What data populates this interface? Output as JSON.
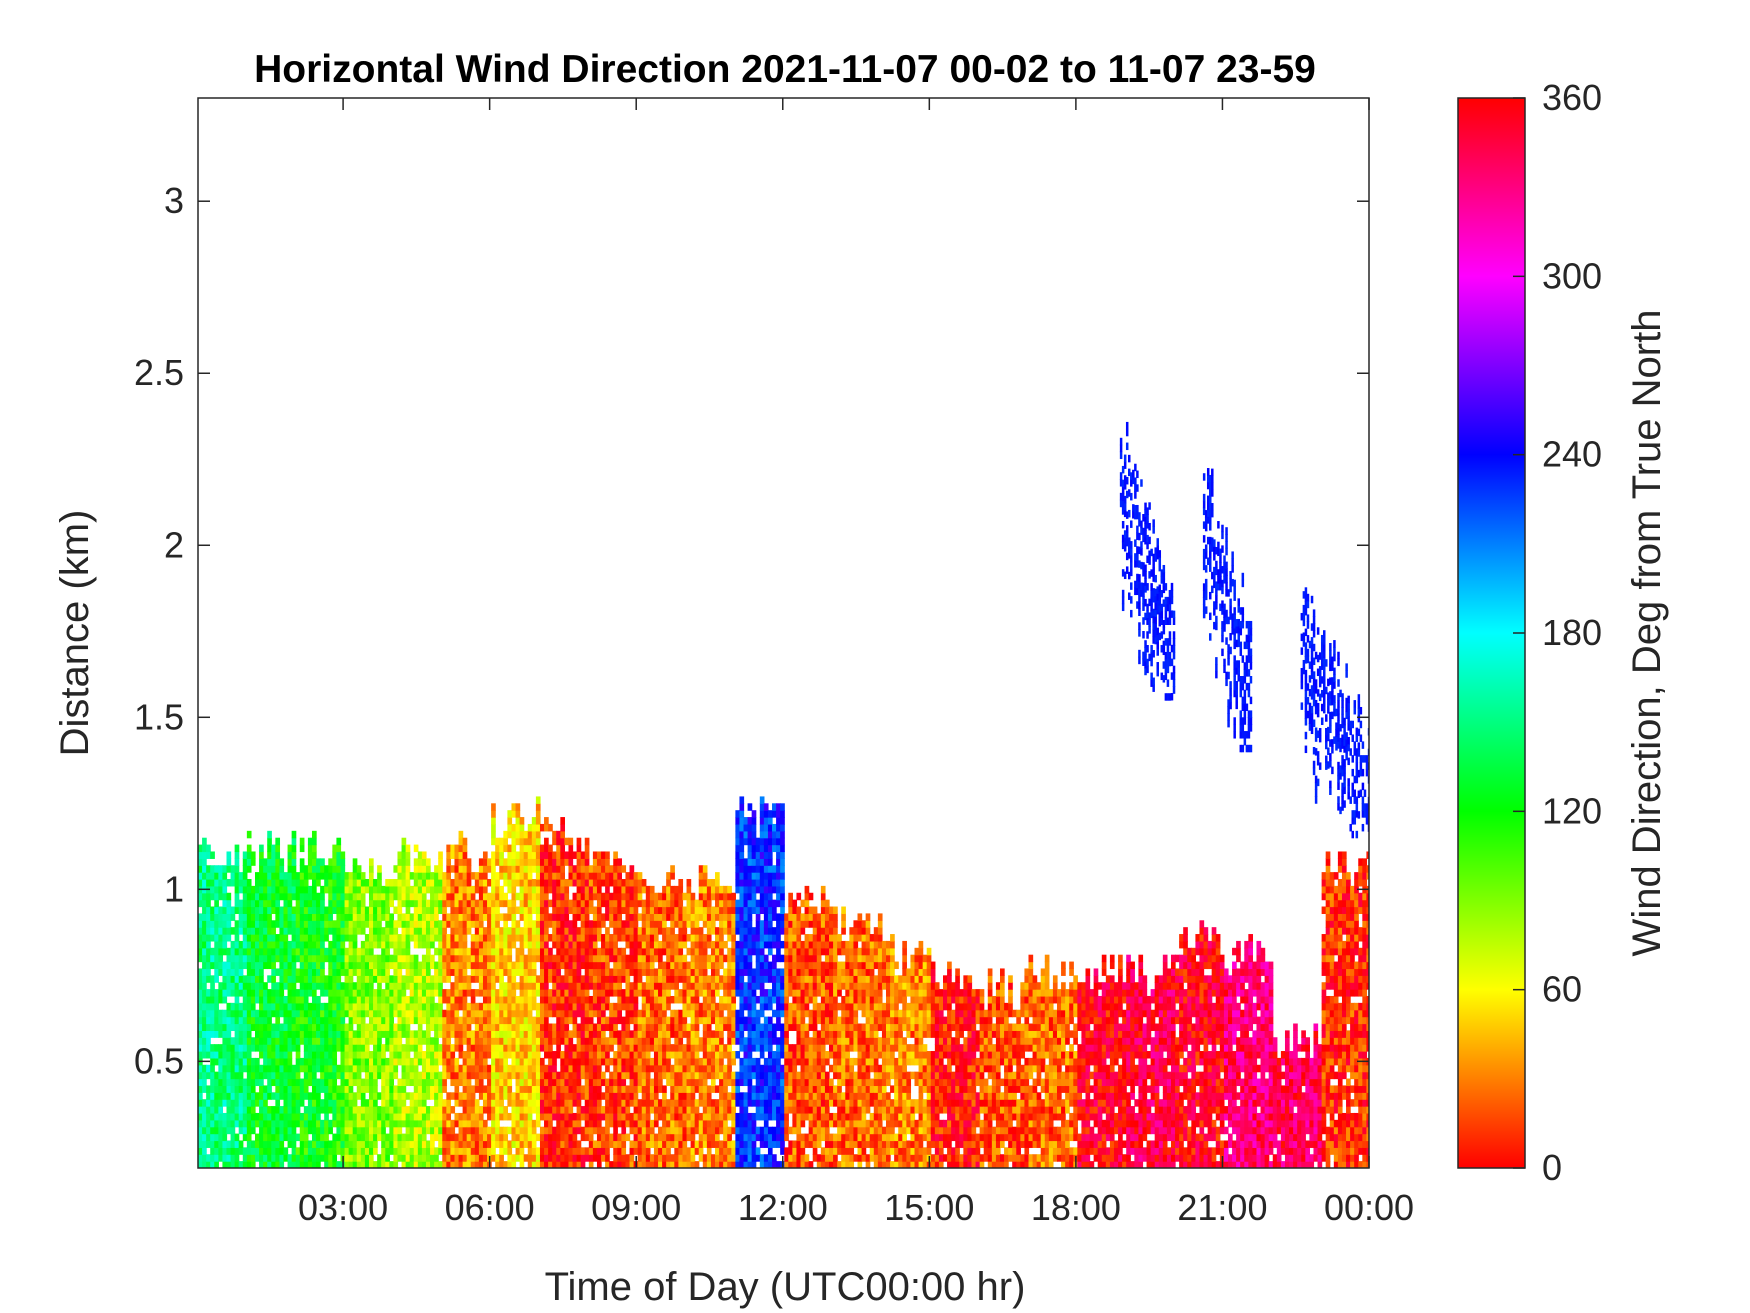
{
  "chart_data": {
    "type": "heatmap",
    "title": "Horizontal Wind Direction 2021-11-07 00-02 to 11-07 23-59",
    "xlabel": "Time of Day (UTC00:00 hr)",
    "ylabel": "Distance (km)",
    "colorbar_label": "Wind Direction, Deg from True North",
    "xlim_hours": [
      0.03,
      24
    ],
    "ylim": [
      0.19,
      3.3
    ],
    "x_ticks": [
      3,
      6,
      9,
      12,
      15,
      18,
      21,
      24
    ],
    "x_tick_labels": [
      "03:00",
      "06:00",
      "09:00",
      "12:00",
      "15:00",
      "18:00",
      "21:00",
      "00:00"
    ],
    "y_ticks": [
      0.5,
      1,
      1.5,
      2,
      2.5,
      3
    ],
    "y_tick_labels": [
      "0.5",
      "1",
      "1.5",
      "2",
      "2.5",
      "3"
    ],
    "colorbar_range": [
      0,
      360
    ],
    "colorbar_ticks": [
      0,
      60,
      120,
      180,
      240,
      300,
      360
    ],
    "colorbar_tick_labels": [
      "0",
      "60",
      "120",
      "180",
      "240",
      "300",
      "360"
    ],
    "colormap": "hsv",
    "grid": false,
    "hourly_low_level": {
      "hour_start": [
        0,
        1,
        2,
        3,
        4,
        5,
        6,
        7,
        8,
        9,
        10,
        11,
        12,
        13,
        14,
        15,
        16,
        17,
        18,
        19,
        20,
        21,
        22,
        23
      ],
      "top_km": [
        1.1,
        1.1,
        1.1,
        1.05,
        1.1,
        1.1,
        1.2,
        1.15,
        1.05,
        1.0,
        1.0,
        1.2,
        0.95,
        0.9,
        0.8,
        0.75,
        0.7,
        0.75,
        0.75,
        0.75,
        0.85,
        0.8,
        0.55,
        1.05
      ],
      "direction_deg": [
        150,
        130,
        120,
        90,
        80,
        30,
        50,
        10,
        15,
        25,
        30,
        230,
        20,
        25,
        30,
        5,
        20,
        25,
        355,
        345,
        355,
        335,
        340,
        10
      ]
    },
    "upper_level_features": [
      {
        "hours": [
          18.9,
          20.0
        ],
        "bottom_km": 1.55,
        "top_km": 2.35,
        "direction_deg": 235
      },
      {
        "hours": [
          20.6,
          21.6
        ],
        "bottom_km": 1.4,
        "top_km": 2.2,
        "direction_deg": 235
      },
      {
        "hours": [
          22.6,
          24.0
        ],
        "bottom_km": 1.15,
        "top_km": 1.85,
        "direction_deg": 235
      }
    ]
  }
}
